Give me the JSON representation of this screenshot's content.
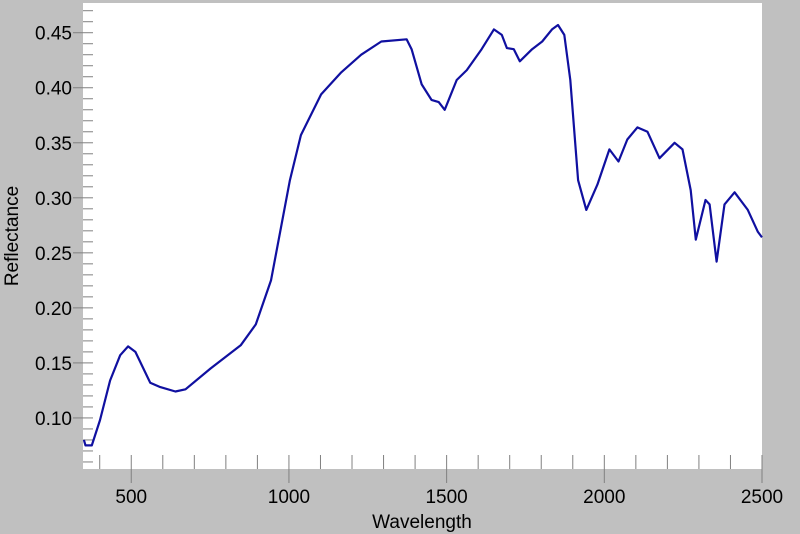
{
  "chart_data": {
    "type": "line",
    "title": "",
    "xlabel": "Wavelength",
    "ylabel": "Reflectance",
    "xlim": [
      347,
      2500
    ],
    "ylim": [
      0.0536,
      0.477
    ],
    "grid": false,
    "x_ticks": [
      500,
      1000,
      1500,
      2000,
      2500
    ],
    "x_tick_labels": [
      "500",
      "1000",
      "1500",
      "2000",
      "2500"
    ],
    "y_ticks": [
      0.1,
      0.15,
      0.2,
      0.25,
      0.3,
      0.35,
      0.4,
      0.45
    ],
    "y_tick_labels": [
      "0.10",
      "0.15",
      "0.20",
      "0.25",
      "0.30",
      "0.35",
      "0.40",
      "0.45"
    ],
    "colors": {
      "line": "#1010a0",
      "background": "#c0c0c0",
      "plot": "#ffffff"
    },
    "series": [
      {
        "x": [
          350,
          355,
          375,
          401,
          433,
          465,
          490,
          513,
          560,
          592,
          640,
          672,
          752,
          847,
          895,
          943,
          1003,
          1038,
          1102,
          1166,
          1229,
          1293,
          1373,
          1389,
          1421,
          1452,
          1475,
          1494,
          1532,
          1564,
          1611,
          1650,
          1675,
          1691,
          1713,
          1732,
          1771,
          1803,
          1834,
          1853,
          1873,
          1892,
          1917,
          1943,
          1978,
          2016,
          2045,
          2073,
          2105,
          2137,
          2175,
          2223,
          2248,
          2274,
          2290,
          2321,
          2334,
          2356,
          2381,
          2413,
          2455,
          2487,
          2500
        ],
        "y": [
          0.08,
          0.075,
          0.075,
          0.098,
          0.134,
          0.157,
          0.165,
          0.16,
          0.132,
          0.128,
          0.124,
          0.126,
          0.145,
          0.166,
          0.185,
          0.225,
          0.316,
          0.357,
          0.394,
          0.414,
          0.43,
          0.442,
          0.444,
          0.435,
          0.403,
          0.389,
          0.387,
          0.38,
          0.407,
          0.416,
          0.435,
          0.453,
          0.448,
          0.436,
          0.435,
          0.424,
          0.435,
          0.442,
          0.453,
          0.457,
          0.448,
          0.407,
          0.316,
          0.289,
          0.312,
          0.344,
          0.333,
          0.353,
          0.364,
          0.36,
          0.336,
          0.35,
          0.344,
          0.307,
          0.262,
          0.298,
          0.294,
          0.242,
          0.294,
          0.305,
          0.289,
          0.269,
          0.264
        ]
      }
    ]
  }
}
